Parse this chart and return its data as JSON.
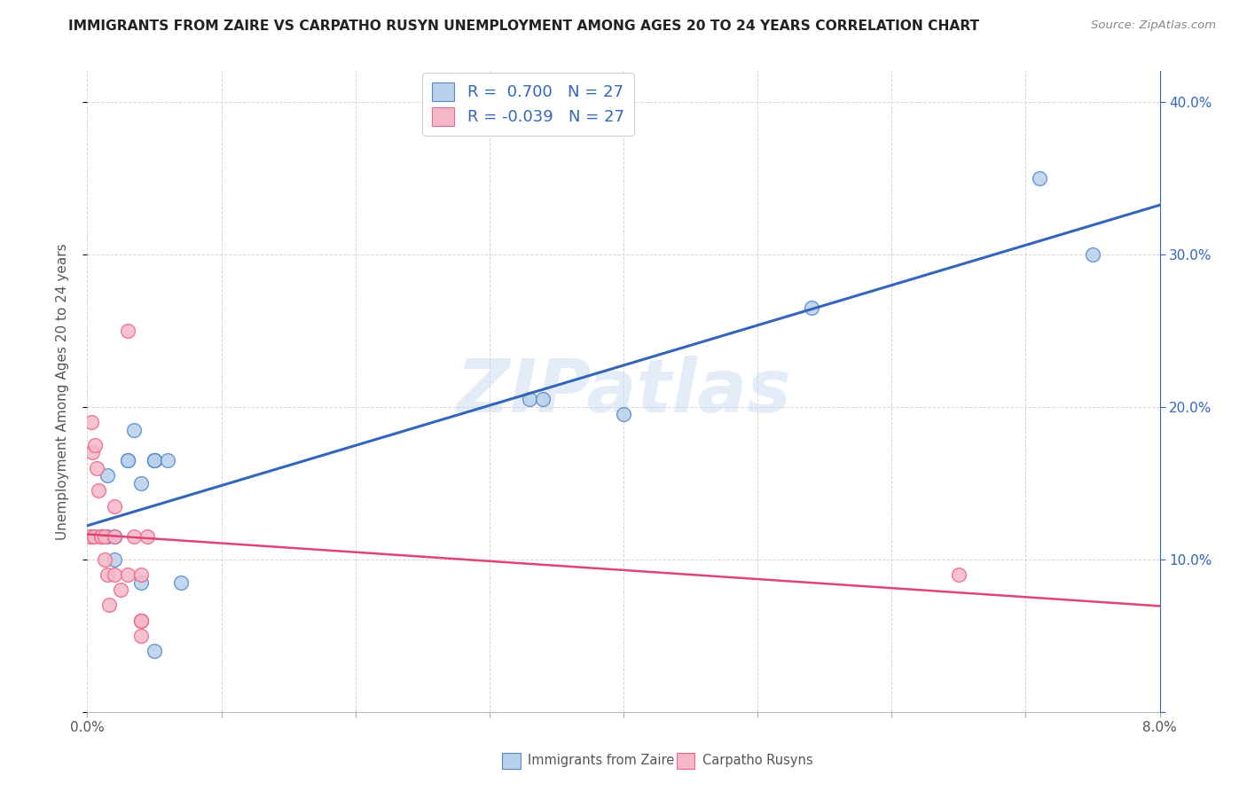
{
  "title": "IMMIGRANTS FROM ZAIRE VS CARPATHO RUSYN UNEMPLOYMENT AMONG AGES 20 TO 24 YEARS CORRELATION CHART",
  "source": "Source: ZipAtlas.com",
  "ylabel": "Unemployment Among Ages 20 to 24 years",
  "watermark": "ZIPatlas",
  "legend_label_blue": "Immigrants from Zaire",
  "legend_label_pink": "Carpatho Rusyns",
  "R_blue": 0.7,
  "N_blue": 27,
  "R_pink": -0.039,
  "N_pink": 27,
  "blue_fill": "#b8d0ea",
  "pink_fill": "#f5b8c8",
  "blue_edge": "#5588cc",
  "pink_edge": "#ee6688",
  "line_blue": "#3366bb",
  "line_pink": "#dd4477",
  "x_blue": [
    0.0003,
    0.0005,
    0.001,
    0.001,
    0.0015,
    0.0015,
    0.002,
    0.002,
    0.002,
    0.003,
    0.003,
    0.0035,
    0.004,
    0.004,
    0.005,
    0.005,
    0.005,
    0.005,
    0.005,
    0.006,
    0.007,
    0.033,
    0.034,
    0.04,
    0.054,
    0.071,
    0.075
  ],
  "y_blue": [
    0.115,
    0.115,
    0.115,
    0.115,
    0.155,
    0.115,
    0.115,
    0.115,
    0.1,
    0.165,
    0.165,
    0.185,
    0.15,
    0.085,
    0.165,
    0.165,
    0.165,
    0.165,
    0.04,
    0.165,
    0.085,
    0.205,
    0.205,
    0.195,
    0.265,
    0.35,
    0.3
  ],
  "x_pink": [
    0.0002,
    0.0003,
    0.0004,
    0.0005,
    0.0006,
    0.0007,
    0.0008,
    0.001,
    0.001,
    0.0013,
    0.0013,
    0.0015,
    0.0016,
    0.002,
    0.002,
    0.002,
    0.0025,
    0.003,
    0.003,
    0.0035,
    0.004,
    0.004,
    0.004,
    0.004,
    0.004,
    0.0045,
    0.065
  ],
  "y_pink": [
    0.115,
    0.19,
    0.17,
    0.115,
    0.175,
    0.16,
    0.145,
    0.115,
    0.115,
    0.115,
    0.1,
    0.09,
    0.07,
    0.135,
    0.115,
    0.09,
    0.08,
    0.25,
    0.09,
    0.115,
    0.09,
    0.06,
    0.06,
    0.06,
    0.05,
    0.115,
    0.09
  ],
  "xlim": [
    0.0,
    0.08
  ],
  "ylim": [
    0.0,
    0.42
  ],
  "xticks": [
    0.0,
    0.01,
    0.02,
    0.03,
    0.04,
    0.05,
    0.06,
    0.07,
    0.08
  ],
  "xtick_labels": [
    "0.0%",
    "",
    "",
    "",
    "",
    "",
    "",
    "",
    "8.0%"
  ],
  "yticks": [
    0.0,
    0.1,
    0.2,
    0.3,
    0.4
  ],
  "ytick_right_labels": [
    "",
    "10.0%",
    "20.0%",
    "30.0%",
    "40.0%"
  ],
  "grid_color": "#cccccc",
  "background": "#ffffff",
  "text_color": "#555555",
  "title_color": "#222222",
  "source_color": "#888888"
}
